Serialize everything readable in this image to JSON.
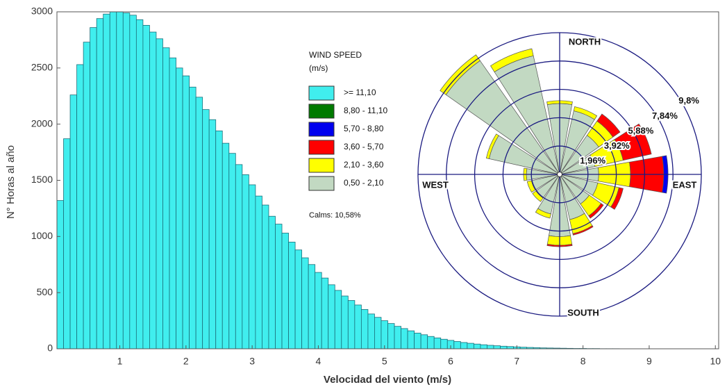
{
  "chart_data": [
    {
      "type": "histogram",
      "xlabel": "Velocidad del viento (m/s)",
      "ylabel": "N° Horas al año",
      "color": "#40eeee",
      "bins": [
        0.05,
        0.15,
        0.25,
        0.35,
        0.45,
        0.55,
        0.65,
        0.75,
        0.85,
        0.95,
        1.05,
        1.15,
        1.25,
        1.35,
        1.45,
        1.55,
        1.65,
        1.75,
        1.85,
        1.95,
        2.05,
        2.15,
        2.25,
        2.35,
        2.45,
        2.55,
        2.65,
        2.75,
        2.85,
        2.95,
        3.05,
        3.15,
        3.25,
        3.35,
        3.45,
        3.55,
        3.65,
        3.75,
        3.85,
        3.95,
        4.05,
        4.15,
        4.25,
        4.35,
        4.45,
        4.55,
        4.65,
        4.75,
        4.85,
        4.95,
        5.05,
        5.15,
        5.25,
        5.35,
        5.45,
        5.55,
        5.65,
        5.75,
        5.85,
        5.95,
        6.05,
        6.15,
        6.25,
        6.35,
        6.45,
        6.55,
        6.65,
        6.75,
        6.85,
        6.95,
        7.05,
        7.15,
        7.25,
        7.35,
        7.45,
        7.55,
        7.65,
        7.75,
        7.85,
        7.95,
        8.05,
        8.15,
        8.25,
        8.35,
        8.45,
        8.55
      ],
      "counts": [
        1320,
        1870,
        2260,
        2530,
        2730,
        2860,
        2940,
        2980,
        3000,
        3000,
        2990,
        2970,
        2930,
        2880,
        2820,
        2760,
        2680,
        2590,
        2500,
        2430,
        2330,
        2240,
        2130,
        2040,
        1940,
        1830,
        1740,
        1640,
        1550,
        1460,
        1360,
        1280,
        1180,
        1110,
        1030,
        950,
        880,
        810,
        750,
        680,
        630,
        570,
        520,
        470,
        430,
        390,
        350,
        310,
        280,
        250,
        225,
        200,
        180,
        160,
        140,
        125,
        110,
        97,
        85,
        75,
        65,
        56,
        49,
        42,
        36,
        31,
        27,
        23,
        20,
        17,
        14,
        12,
        10,
        8,
        7,
        6,
        5,
        4,
        3,
        3,
        2,
        2,
        1,
        1,
        1
      ],
      "xlim": [
        0.05,
        10.05
      ],
      "ylim": [
        0,
        3000
      ],
      "xticks": [
        1,
        2,
        3,
        4,
        5,
        6,
        7,
        8,
        9,
        10
      ],
      "yticks": [
        0,
        500,
        1000,
        1500,
        2000,
        2500,
        3000
      ]
    },
    {
      "type": "wind_rose",
      "legend_title": [
        "WIND SPEED",
        "(m/s)"
      ],
      "calms": "Calms: 10,58%",
      "direction_labels": [
        "NORTH",
        "EAST",
        "SOUTH",
        "WEST"
      ],
      "directions": [
        0,
        22.5,
        45,
        67.5,
        90,
        112.5,
        135,
        157.5,
        180,
        202.5,
        225,
        247.5,
        270,
        292.5,
        315,
        337.5
      ],
      "rlim": [
        0,
        9.8
      ],
      "rticks": [
        {
          "value": 1.96,
          "label": "1,96%"
        },
        {
          "value": 3.92,
          "label": "3,92%"
        },
        {
          "value": 5.88,
          "label": "5,88%"
        },
        {
          "value": 7.84,
          "label": "7,84%"
        },
        {
          "value": 9.8,
          "label": "9,8%"
        }
      ],
      "series": [
        {
          "name": "0,50 - 2,10",
          "color": "#c2d9c2",
          "values": [
            4.9,
            4.5,
            3.3,
            2.5,
            2.7,
            2.7,
            2.5,
            3.2,
            4.3,
            2.8,
            2.0,
            2.0,
            2.3,
            5.0,
            9.6,
            8.4
          ]
        },
        {
          "name": "2,10 - 3,60",
          "color": "#ffff00",
          "values": [
            0.2,
            0.3,
            1.2,
            2.0,
            2.2,
            1.5,
            1.0,
            1.0,
            0.6,
            0.3,
            0.3,
            0.3,
            0.2,
            0.2,
            0.5,
            0.5
          ]
        },
        {
          "name": "3,60 - 5,70",
          "color": "#ff0000",
          "values": [
            0,
            0,
            0.6,
            2.0,
            2.3,
            0.3,
            0.2,
            0.1,
            0.1,
            0,
            0,
            0,
            0,
            0,
            0,
            0
          ]
        },
        {
          "name": "5,70 - 8,80",
          "color": "#0000ee",
          "values": [
            0,
            0,
            0,
            0,
            0.3,
            0,
            0,
            0,
            0,
            0,
            0,
            0,
            0,
            0,
            0,
            0
          ]
        },
        {
          "name": "8,80 - 11,10",
          "color": "#007a00",
          "values": [
            0,
            0,
            0,
            0,
            0,
            0,
            0,
            0,
            0,
            0,
            0,
            0,
            0,
            0,
            0,
            0
          ]
        },
        {
          "name": ">= 11,10",
          "color": "#40eeee",
          "values": [
            0,
            0,
            0,
            0,
            0,
            0,
            0,
            0,
            0,
            0,
            0,
            0,
            0,
            0,
            0,
            0
          ]
        }
      ]
    }
  ]
}
